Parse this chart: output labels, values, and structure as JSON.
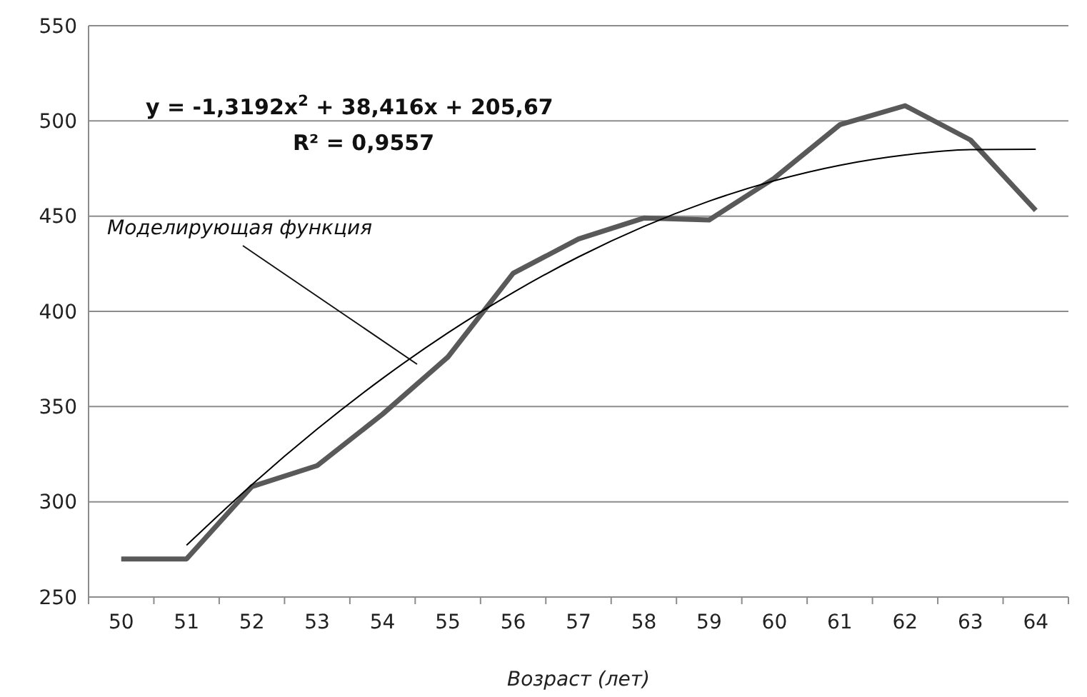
{
  "chart_data": {
    "type": "line",
    "xlabel": "Возраст (лет)",
    "categories": [
      "50",
      "51",
      "52",
      "53",
      "54",
      "55",
      "56",
      "57",
      "58",
      "59",
      "60",
      "61",
      "62",
      "63",
      "64"
    ],
    "series": [
      {
        "color": "#595959",
        "values": [
          270,
          270,
          308,
          319,
          346,
          376,
          420,
          438,
          449,
          448,
          470,
          498,
          508,
          490,
          453
        ]
      },
      {
        "type": "line",
        "color": "#000000",
        "x": [
          "51",
          "52",
          "53",
          "54",
          "55",
          "56",
          "57",
          "58",
          "59",
          "60",
          "61",
          "62",
          "63",
          "64"
        ],
        "values": [
          277.2,
          309.0,
          338.2,
          364.8,
          388.7,
          409.9,
          428.6,
          444.6,
          457.9,
          468.6,
          476.7,
          482.1,
          484.9,
          485.1
        ]
      }
    ],
    "ylim": [
      250,
      550
    ],
    "yticks": [
      250,
      300,
      350,
      400,
      450,
      500,
      550
    ],
    "grid": "y",
    "marker": "none",
    "line_style": "solid",
    "annotations": [
      "y = -1,3192x$^{2}$ + 38,416x + 205,67",
      "R² = 0,9557",
      "Моделирующая функция"
    ]
  }
}
